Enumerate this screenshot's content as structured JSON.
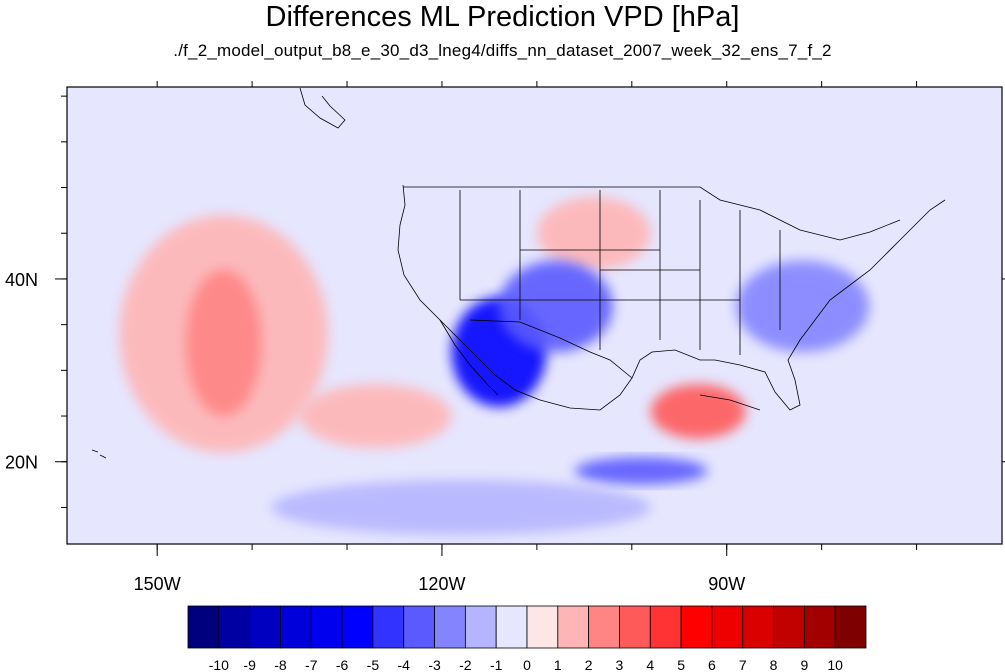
{
  "title": "Differences ML Prediction VPD [hPa]",
  "subtitle": "./f_2_model_output_b8_e_30_d3_lneg4/diffs_nn_dataset_2007_week_32_ens_7_f_2",
  "chart_data": {
    "type": "heatmap",
    "title": "Differences ML Prediction VPD [hPa]",
    "subtitle": "./f_2_model_output_b8_e_30_d3_lneg4/diffs_nn_dataset_2007_week_32_ens_7_f_2",
    "x_range": [
      -159.5,
      -61
    ],
    "y_range": [
      11,
      61
    ],
    "x_ticks": [
      {
        "value": -150,
        "label": "150W"
      },
      {
        "value": -120,
        "label": "120W"
      },
      {
        "value": -90,
        "label": "90W"
      }
    ],
    "y_ticks": [
      {
        "value": 40,
        "label": "40N"
      },
      {
        "value": 20,
        "label": "20N"
      }
    ],
    "colorbar": {
      "labels": [
        "-10",
        "-9",
        "-8",
        "-7",
        "-6",
        "-5",
        "-4",
        "-3",
        "-2",
        "-1",
        "0",
        "1",
        "2",
        "3",
        "4",
        "5",
        "6",
        "7",
        "8",
        "9",
        "10"
      ],
      "colors": [
        "#00007f",
        "#0000a2",
        "#0000c1",
        "#0000db",
        "#0000ef",
        "#0000ff",
        "#3333ff",
        "#5a5aff",
        "#8484ff",
        "#b5b5ff",
        "#e6e6ff",
        "#ffe6e6",
        "#ffb5b5",
        "#ff8484",
        "#ff5a5a",
        "#ff3333",
        "#ff0000",
        "#ef0000",
        "#db0000",
        "#c10000",
        "#a20000",
        "#7f0000"
      ]
    },
    "regions": [
      {
        "name": "north-pacific-pink",
        "value": 1.5,
        "lon": -143,
        "lat": 34,
        "rlon": 11,
        "rlat": 13
      },
      {
        "name": "north-pacific-core",
        "value": 2.5,
        "lon": -143,
        "lat": 33,
        "rlon": 4,
        "rlat": 8
      },
      {
        "name": "subtropical-pacific-pink",
        "value": 1.5,
        "lon": -127,
        "lat": 25,
        "rlon": 8,
        "rlat": 3.5
      },
      {
        "name": "gulf-of-mexico",
        "value": 3.5,
        "lon": -93,
        "lat": 25.5,
        "rlon": 5,
        "rlat": 3
      },
      {
        "name": "great-plains-north",
        "value": 1.5,
        "lon": -104,
        "lat": 45,
        "rlon": 6,
        "rlat": 4
      },
      {
        "name": "west-coast-mexico",
        "value": -6,
        "lon": -114,
        "lat": 32,
        "rlon": 5,
        "rlat": 6
      },
      {
        "name": "rocky-mountains",
        "value": -3.5,
        "lon": -108,
        "lat": 37,
        "rlon": 6,
        "rlat": 5
      },
      {
        "name": "eastern-us",
        "value": -3,
        "lon": -82,
        "lat": 37,
        "rlon": 7,
        "rlat": 5
      },
      {
        "name": "caribbean-south",
        "value": -4,
        "lon": -99,
        "lat": 19,
        "rlon": 7,
        "rlat": 1.5
      },
      {
        "name": "tropical-pacific-south",
        "value": -1.5,
        "lon": -118,
        "lat": 15,
        "rlon": 20,
        "rlat": 3
      }
    ]
  },
  "colors": {
    "frame": "#000000",
    "background": "#ffffff"
  }
}
